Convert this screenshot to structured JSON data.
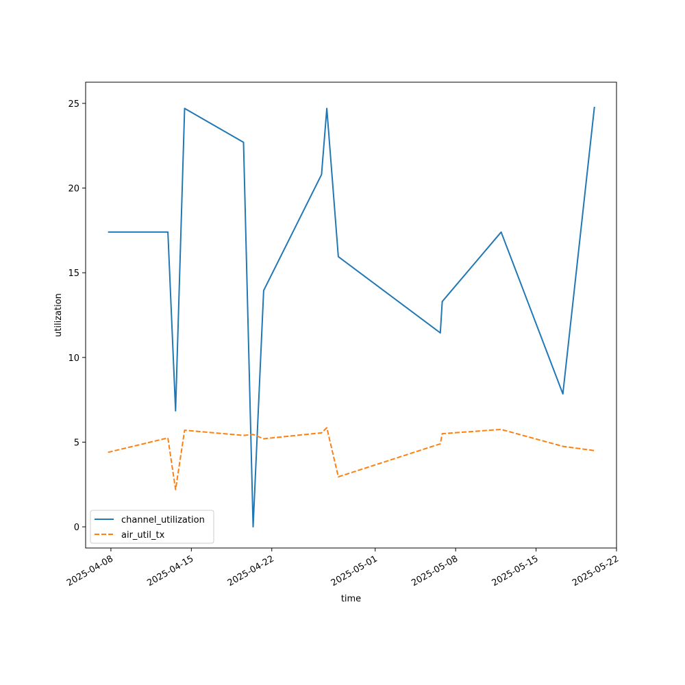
{
  "chart_data": {
    "type": "line",
    "xlabel": "time",
    "ylabel": "utilization",
    "ylim": [
      -1.25,
      26.25
    ],
    "xlim": [
      "2025-04-05T19:12",
      "2025-05-22T00:00"
    ],
    "x_ticks": [
      "2025-04-08",
      "2025-04-15",
      "2025-04-22",
      "2025-05-01",
      "2025-05-08",
      "2025-05-15",
      "2025-05-22"
    ],
    "y_ticks": [
      0,
      5,
      10,
      15,
      20,
      25
    ],
    "grid": false,
    "legend_position": "lower-left",
    "series": [
      {
        "name": "channel_utilization",
        "color": "#1f77b4",
        "style": "solid",
        "points": [
          [
            "2025-04-07T18:00",
            17.4
          ],
          [
            "2025-04-12T23:00",
            17.4
          ],
          [
            "2025-04-13T15:00",
            6.85
          ],
          [
            "2025-04-14T10:00",
            24.7
          ],
          [
            "2025-04-19T13:00",
            22.7
          ],
          [
            "2025-04-20T09:00",
            0.0
          ],
          [
            "2025-04-21T07:00",
            13.95
          ],
          [
            "2025-04-26T08:00",
            20.8
          ],
          [
            "2025-04-26T19:00",
            24.7
          ],
          [
            "2025-04-27T19:00",
            15.95
          ],
          [
            "2025-05-06T16:00",
            11.45
          ],
          [
            "2025-05-06T20:00",
            13.3
          ],
          [
            "2025-05-11T23:00",
            17.4
          ],
          [
            "2025-05-17T08:00",
            7.85
          ],
          [
            "2025-05-20T02:00",
            24.8
          ]
        ]
      },
      {
        "name": "air_util_tx",
        "color": "#ff7f0e",
        "style": "dashed",
        "points": [
          [
            "2025-04-07T18:00",
            4.4
          ],
          [
            "2025-04-12T23:00",
            5.25
          ],
          [
            "2025-04-13T15:00",
            2.2
          ],
          [
            "2025-04-14T10:00",
            5.7
          ],
          [
            "2025-04-19T13:00",
            5.4
          ],
          [
            "2025-04-20T09:00",
            5.45
          ],
          [
            "2025-04-21T07:00",
            5.2
          ],
          [
            "2025-04-26T08:00",
            5.55
          ],
          [
            "2025-04-26T19:00",
            5.85
          ],
          [
            "2025-04-27T19:00",
            2.95
          ],
          [
            "2025-05-06T16:00",
            4.9
          ],
          [
            "2025-05-06T20:00",
            5.5
          ],
          [
            "2025-05-11T23:00",
            5.75
          ],
          [
            "2025-05-17T08:00",
            4.75
          ],
          [
            "2025-05-20T02:00",
            4.5
          ]
        ]
      }
    ]
  }
}
